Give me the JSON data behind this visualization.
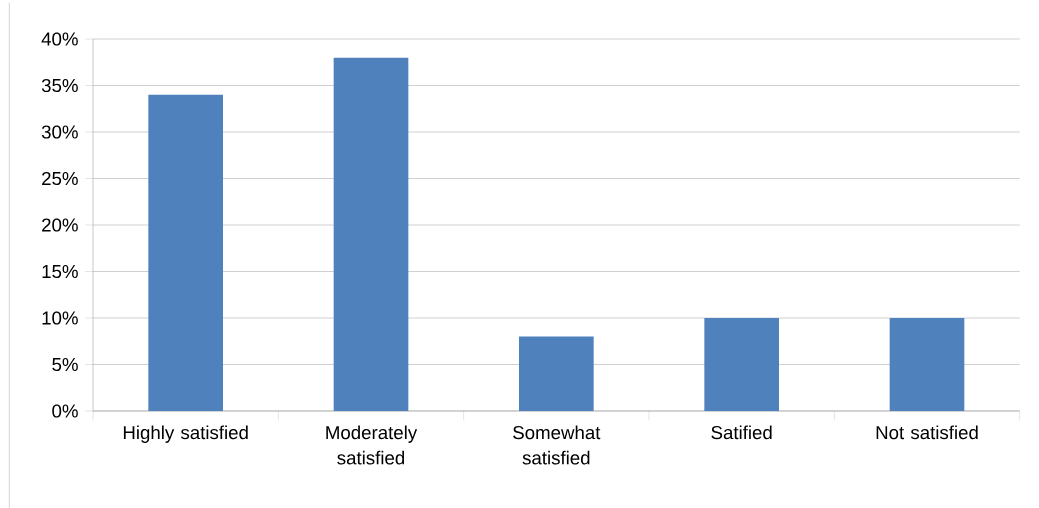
{
  "chart_data": {
    "type": "bar",
    "categories": [
      "Highly satisfied",
      "Moderately satisfied",
      "Somewhat satisfied",
      "Satified",
      "Not satisfied"
    ],
    "values": [
      34,
      38,
      8,
      10,
      10
    ],
    "color": "#4f81bd",
    "ylim": [
      0,
      40
    ],
    "yticks": [
      {
        "value": 0,
        "label": "0%"
      },
      {
        "value": 5,
        "label": "5%"
      },
      {
        "value": 10,
        "label": "10%"
      },
      {
        "value": 15,
        "label": "15%"
      },
      {
        "value": 20,
        "label": "20%"
      },
      {
        "value": 25,
        "label": "25%"
      },
      {
        "value": 30,
        "label": "30%"
      },
      {
        "value": 35,
        "label": "35%"
      },
      {
        "value": 40,
        "label": "40%"
      }
    ],
    "grid": "y"
  }
}
